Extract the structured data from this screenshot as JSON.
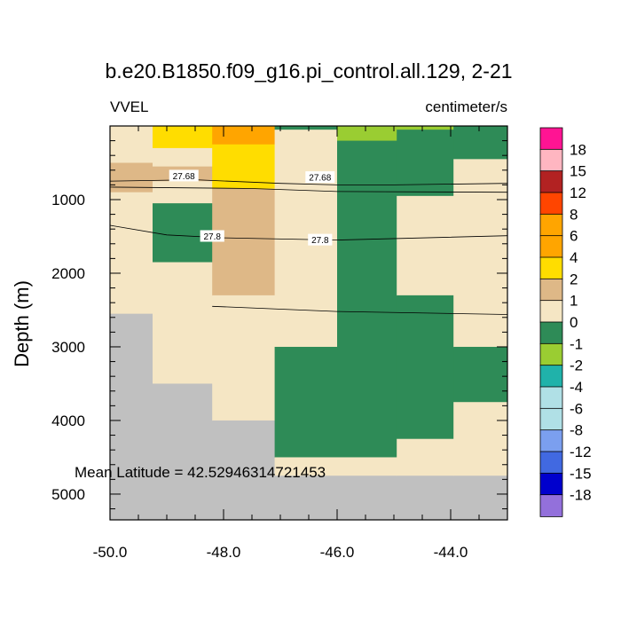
{
  "chart_data": {
    "type": "heatmap",
    "title": "b.e20.B1850.f09_g16.pi_control.all.129, 2-21",
    "variable": "VVEL",
    "units": "centimeter/s",
    "ylabel": "Depth (m)",
    "xlabel": "",
    "xlim": [
      -50.0,
      -43.0
    ],
    "ylim": [
      5350,
      0
    ],
    "x_ticks": [
      -50.0,
      -48.0,
      -46.0,
      -44.0
    ],
    "x_tick_labels": [
      "-50.0",
      "-48.0",
      "-46.0",
      "-44.0"
    ],
    "y_ticks": [
      1000,
      2000,
      3000,
      4000,
      5000
    ],
    "y_tick_labels": [
      "1000",
      "2000",
      "3000",
      "4000",
      "5000"
    ],
    "annotation": "Mean Latitude = 42.52946314721453",
    "columns": [
      -50.0,
      -49.25,
      -48.2,
      -47.1,
      -46.0,
      -44.95,
      -43.95,
      -43.0
    ],
    "cells": [
      {
        "c": 0,
        "z0": 0,
        "z1": 500,
        "v": 0.5
      },
      {
        "c": 0,
        "z0": 500,
        "z1": 900,
        "v": 1.5
      },
      {
        "c": 0,
        "z0": 900,
        "z1": 2550,
        "v": 0.5
      },
      {
        "c": 0,
        "z0": 2550,
        "z1": 5350,
        "v": "land"
      },
      {
        "c": 1,
        "z0": 0,
        "z1": 300,
        "v": 3
      },
      {
        "c": 1,
        "z0": 300,
        "z1": 550,
        "v": 0.5
      },
      {
        "c": 1,
        "z0": 550,
        "z1": 750,
        "v": 1.5
      },
      {
        "c": 1,
        "z0": 750,
        "z1": 1050,
        "v": 0.5
      },
      {
        "c": 1,
        "z0": 1050,
        "z1": 1850,
        "v": -0.5
      },
      {
        "c": 1,
        "z0": 1850,
        "z1": 3500,
        "v": 0.5
      },
      {
        "c": 1,
        "z0": 3500,
        "z1": 5350,
        "v": "land"
      },
      {
        "c": 2,
        "z0": 0,
        "z1": 250,
        "v": 5
      },
      {
        "c": 2,
        "z0": 250,
        "z1": 850,
        "v": 3
      },
      {
        "c": 2,
        "z0": 850,
        "z1": 2300,
        "v": 1.5
      },
      {
        "c": 2,
        "z0": 2300,
        "z1": 4000,
        "v": 0.5
      },
      {
        "c": 2,
        "z0": 4000,
        "z1": 5350,
        "v": "land"
      },
      {
        "c": 3,
        "z0": 0,
        "z1": 50,
        "v": -0.5
      },
      {
        "c": 3,
        "z0": 50,
        "z1": 3000,
        "v": 0.5
      },
      {
        "c": 3,
        "z0": 3000,
        "z1": 4500,
        "v": -0.5
      },
      {
        "c": 3,
        "z0": 4500,
        "z1": 4750,
        "v": 0.5
      },
      {
        "c": 3,
        "z0": 4750,
        "z1": 5350,
        "v": "land"
      },
      {
        "c": 4,
        "z0": 0,
        "z1": 200,
        "v": -1.5
      },
      {
        "c": 4,
        "z0": 200,
        "z1": 4500,
        "v": -0.5
      },
      {
        "c": 4,
        "z0": 4500,
        "z1": 4750,
        "v": 0.5
      },
      {
        "c": 4,
        "z0": 4750,
        "z1": 5350,
        "v": "land"
      },
      {
        "c": 5,
        "z0": 0,
        "z1": 50,
        "v": -1.5
      },
      {
        "c": 5,
        "z0": 50,
        "z1": 950,
        "v": -0.5
      },
      {
        "c": 5,
        "z0": 950,
        "z1": 2300,
        "v": 0.5
      },
      {
        "c": 5,
        "z0": 2300,
        "z1": 4250,
        "v": -0.5
      },
      {
        "c": 5,
        "z0": 4250,
        "z1": 4750,
        "v": 0.5
      },
      {
        "c": 5,
        "z0": 4750,
        "z1": 5350,
        "v": "land"
      },
      {
        "c": 6,
        "z0": 0,
        "z1": 450,
        "v": -0.5
      },
      {
        "c": 6,
        "z0": 450,
        "z1": 3000,
        "v": 0.5
      },
      {
        "c": 6,
        "z0": 3000,
        "z1": 3750,
        "v": -0.5
      },
      {
        "c": 6,
        "z0": 3750,
        "z1": 4750,
        "v": 0.5
      },
      {
        "c": 6,
        "z0": 4750,
        "z1": 5350,
        "v": "land"
      }
    ],
    "contours": [
      {
        "label": "27.68",
        "points": [
          [
            -50.0,
            750
          ],
          [
            -48.5,
            730
          ],
          [
            -47.0,
            780
          ],
          [
            -46.0,
            800
          ],
          [
            -45.0,
            800
          ],
          [
            -43.0,
            780
          ]
        ],
        "label_at": [
          [
            -48.7,
            680
          ],
          [
            -46.3,
            700
          ]
        ]
      },
      {
        "label": "27.68",
        "points": [
          [
            -50.0,
            830
          ],
          [
            -47.5,
            850
          ],
          [
            -46.0,
            890
          ],
          [
            -43.0,
            900
          ]
        ],
        "label_at": []
      },
      {
        "label": "27.8",
        "points": [
          [
            -50.0,
            1350
          ],
          [
            -49.0,
            1480
          ],
          [
            -48.0,
            1520
          ],
          [
            -46.0,
            1550
          ],
          [
            -43.0,
            1490
          ]
        ],
        "label_at": [
          [
            -48.2,
            1500
          ],
          [
            -46.3,
            1550
          ]
        ]
      },
      {
        "label": "",
        "points": [
          [
            -48.2,
            2450
          ],
          [
            -46.0,
            2520
          ],
          [
            -43.0,
            2560
          ]
        ],
        "label_at": []
      }
    ],
    "colorbar": {
      "labels": [
        "18",
        "15",
        "12",
        "8",
        "6",
        "4",
        "2",
        "1",
        "0",
        "-1",
        "-2",
        "-4",
        "-6",
        "-8",
        "-12",
        "-15",
        "-18"
      ],
      "colors": [
        "#FF1493",
        "#FFB6C1",
        "#B22222",
        "#FF4500",
        "#FFA500",
        "#FFA500",
        "#FFDD00",
        "#DEB887",
        "#F5E6C4",
        "#2E8B57",
        "#9ACD32",
        "#20B2AA",
        "#B0E0E6",
        "#B0E0E6",
        "#7B9FEF",
        "#4169E1",
        "#0000CD",
        "#9370DB"
      ]
    },
    "land_color": "#C0C0C0"
  }
}
